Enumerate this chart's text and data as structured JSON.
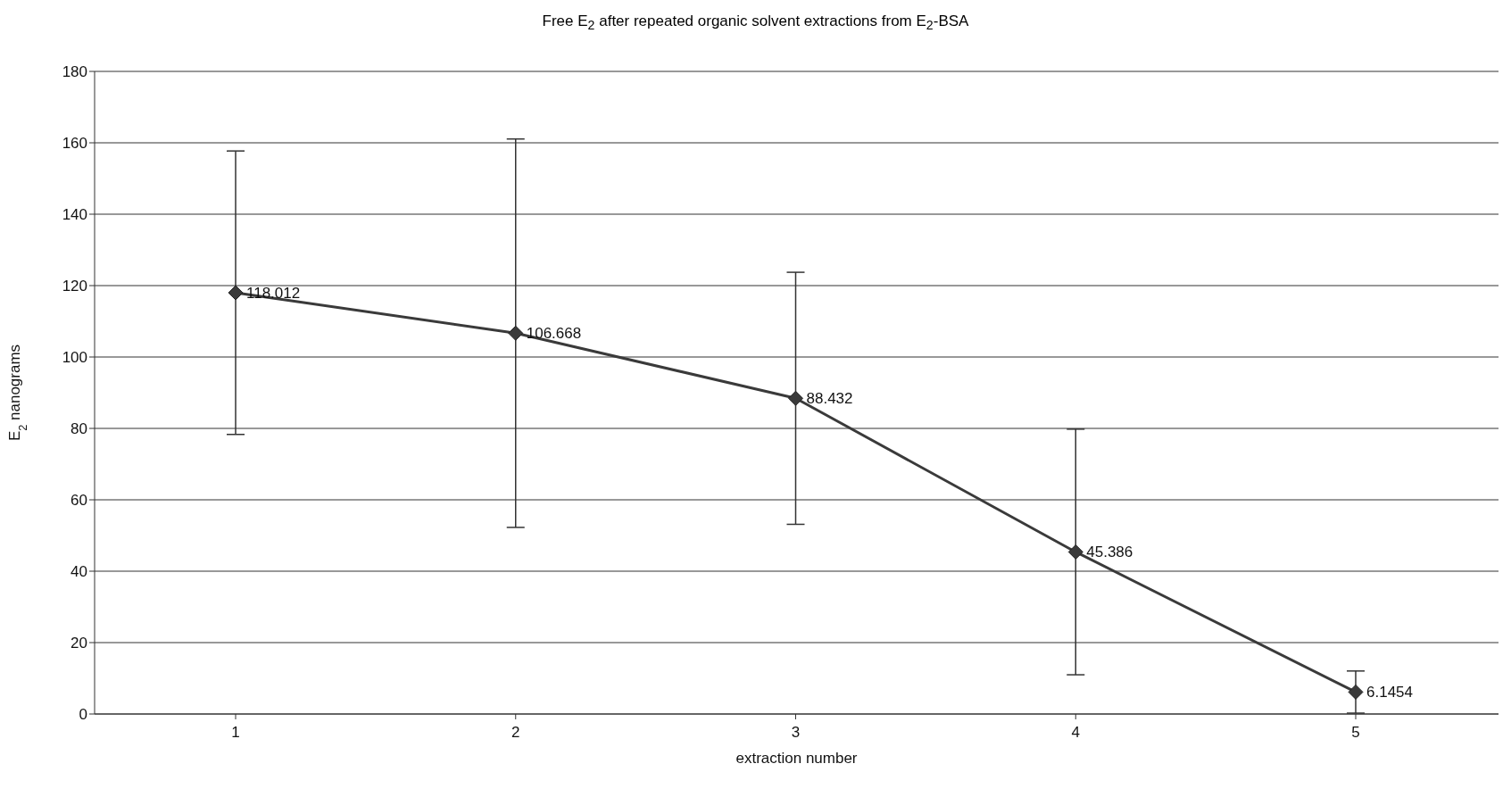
{
  "chart_data": {
    "type": "line",
    "title": "Free E$_{2}$ after repeated organic solvent extractions from E$_{2}$-BSA",
    "xlabel": "extraction number",
    "ylabel": "E$_{2}$ nanograms",
    "categories": [
      "1",
      "2",
      "3",
      "4",
      "5"
    ],
    "values": [
      118.012,
      106.668,
      88.432,
      45.386,
      6.1454
    ],
    "errors": [
      39.7,
      54.4,
      35.3,
      34.4,
      5.9
    ],
    "color": "#3a3a3a",
    "ylim": [
      0,
      180
    ],
    "yticks": [
      0,
      20,
      40,
      60,
      80,
      100,
      120,
      140,
      160,
      180
    ],
    "grid": "y",
    "marker": "diamond",
    "line_style": "solid",
    "data_labels": true
  }
}
